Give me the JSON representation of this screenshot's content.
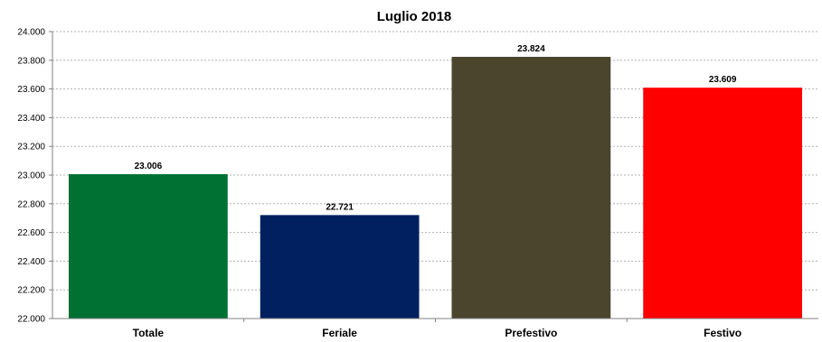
{
  "chart_data": {
    "type": "bar",
    "title": "Luglio 2018",
    "xlabel": "",
    "ylabel": "",
    "categories": [
      "Totale",
      "Feriale",
      "Prefestivo",
      "Festivo"
    ],
    "values": [
      23006,
      22721,
      23824,
      23609
    ],
    "value_labels": [
      "23.006",
      "22.721",
      "23.824",
      "23.609"
    ],
    "colors": [
      "#007033",
      "#002060",
      "#4b452e",
      "#ff0000"
    ],
    "ylim": [
      22000,
      24000
    ],
    "yticks": [
      22000,
      22200,
      22400,
      22600,
      22800,
      23000,
      23200,
      23400,
      23600,
      23800,
      24000
    ],
    "ytick_labels": [
      "22.000",
      "22.200",
      "22.400",
      "22.600",
      "22.800",
      "23.000",
      "23.200",
      "23.400",
      "23.600",
      "23.800",
      "24.000"
    ],
    "grid": true,
    "legend": "none"
  }
}
